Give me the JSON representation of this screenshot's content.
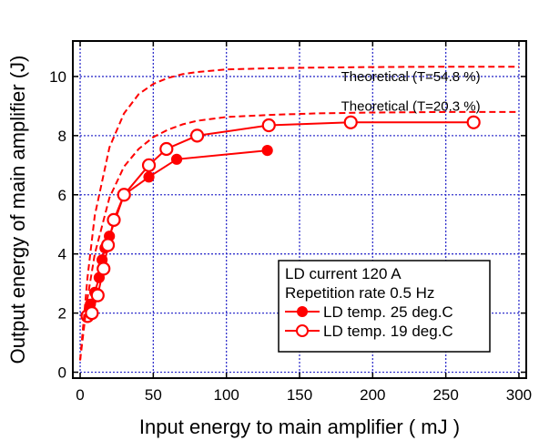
{
  "chart_data": {
    "type": "line",
    "xlabel": "Input energy to main amplifier ( mJ )",
    "ylabel": "Output energy of main amplifier (J)",
    "xlim": [
      -5,
      305
    ],
    "ylim": [
      -0.2,
      11.2
    ],
    "xticks": [
      0,
      50,
      100,
      150,
      200,
      250,
      300
    ],
    "yticks": [
      0,
      2,
      4,
      6,
      8,
      10
    ],
    "grid": true,
    "legend": {
      "placement": "lower-right",
      "lines": [
        "LD current 120  A",
        "Repetition rate 0.5 Hz"
      ],
      "entries": [
        "LD temp. 25 deg.C",
        "LD temp. 19 deg.C"
      ]
    },
    "colors": {
      "series": "#ff0000",
      "grid": "#3333cc",
      "axis": "#000000"
    },
    "series": [
      {
        "name": "LD temp. 25 deg.C",
        "marker": "filled-circle",
        "x": [
          7,
          10,
          13,
          15,
          17,
          20,
          30,
          47,
          66,
          128
        ],
        "y": [
          2.3,
          2.7,
          3.2,
          3.8,
          4.2,
          4.6,
          6.0,
          6.6,
          7.2,
          7.5
        ]
      },
      {
        "name": "LD temp. 19 deg.C",
        "marker": "open-circle",
        "x": [
          5,
          8,
          12,
          16,
          19,
          23,
          30,
          47,
          59,
          80,
          129,
          185,
          269
        ],
        "y": [
          1.9,
          2.0,
          2.6,
          3.5,
          4.3,
          5.15,
          6.0,
          7.0,
          7.55,
          8.0,
          8.35,
          8.45,
          8.45
        ]
      },
      {
        "name": "Theoretical (T=54.8 %)",
        "style": "dashed",
        "x": [
          0,
          5,
          10,
          20,
          30,
          40,
          50,
          60,
          70,
          80,
          100,
          130,
          160,
          200,
          250,
          300
        ],
        "y": [
          0.4,
          3.2,
          5.3,
          7.6,
          8.75,
          9.4,
          9.75,
          9.95,
          10.08,
          10.15,
          10.24,
          10.28,
          10.3,
          10.32,
          10.33,
          10.33
        ]
      },
      {
        "name": "Theoretical (T=20.3 %)",
        "style": "dashed",
        "x": [
          0,
          5,
          10,
          20,
          30,
          40,
          50,
          60,
          70,
          80,
          100,
          130,
          160,
          200,
          250,
          300
        ],
        "y": [
          0.4,
          2.5,
          4.0,
          5.9,
          6.95,
          7.55,
          7.95,
          8.2,
          8.38,
          8.5,
          8.63,
          8.7,
          8.75,
          8.78,
          8.8,
          8.8
        ]
      }
    ],
    "annotations": [
      {
        "text": "Theoretical (T=54.8 %)",
        "x": 226,
        "y": 9.85
      },
      {
        "text": "Theoretical (T=20.3 %)",
        "x": 226,
        "y": 8.85
      }
    ]
  }
}
